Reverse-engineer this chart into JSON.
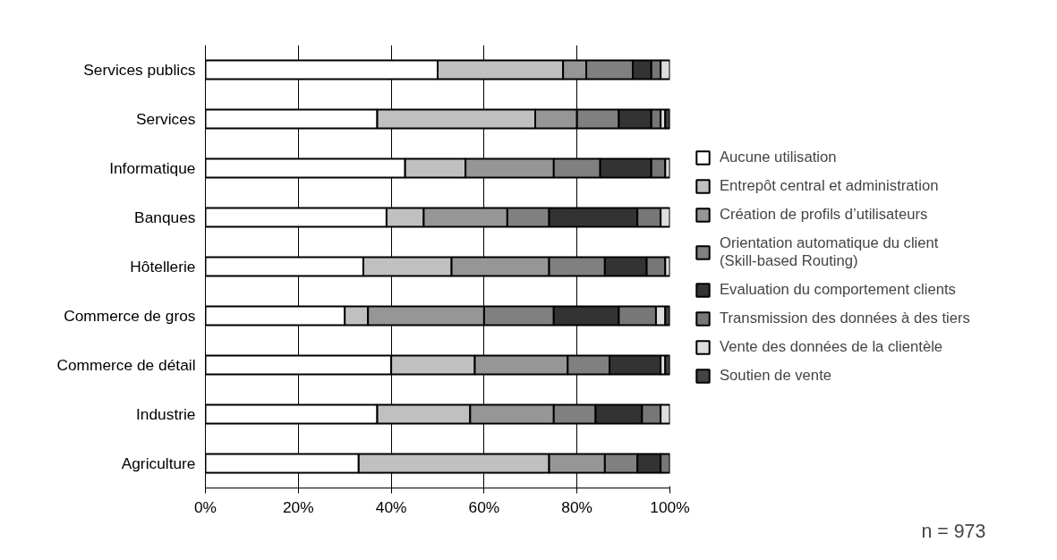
{
  "chart_data": {
    "type": "bar",
    "orientation": "horizontal",
    "stacked": true,
    "categories": [
      "Services publics",
      "Services",
      "Informatique",
      "Banques",
      "Hôtellerie",
      "Commerce de gros",
      "Commerce de détail",
      "Industrie",
      "Agriculture"
    ],
    "series": [
      {
        "name": "Aucune utilisation",
        "color": "#ffffff",
        "values": [
          50,
          37,
          43,
          39,
          34,
          30,
          40,
          37,
          33
        ]
      },
      {
        "name": "Entrepôt central et administration",
        "color": "#c0c0c0",
        "values": [
          27,
          34,
          13,
          8,
          19,
          5,
          18,
          20,
          41
        ]
      },
      {
        "name": "Création de profils d’utilisateurs",
        "color": "#969696",
        "values": [
          5,
          9,
          19,
          18,
          21,
          25,
          20,
          18,
          12
        ]
      },
      {
        "name": "Orientation automatique du client\n(Skill-based Routing)",
        "color": "#808080",
        "values": [
          10,
          9,
          10,
          9,
          12,
          15,
          9,
          9,
          7
        ]
      },
      {
        "name": "Evaluation du comportement clients",
        "color": "#333333",
        "values": [
          4,
          7,
          11,
          19,
          9,
          14,
          11,
          10,
          5
        ]
      },
      {
        "name": "Transmission des données à des tiers",
        "color": "#777777",
        "values": [
          2,
          2,
          3,
          5,
          4,
          8,
          null,
          4,
          2
        ]
      },
      {
        "name": "Vente des données de la clientèle",
        "color": "#dddddd",
        "values": [
          2,
          1,
          1,
          2,
          1,
          2,
          1,
          2,
          null
        ]
      },
      {
        "name": "Soutien de vente",
        "color": "#444444",
        "values": [
          null,
          1,
          null,
          null,
          null,
          1,
          1,
          null,
          null
        ]
      }
    ],
    "xlim": [
      0,
      100
    ],
    "xticks": [
      {
        "value": 0,
        "label": "0%"
      },
      {
        "value": 20,
        "label": "20%"
      },
      {
        "value": 40,
        "label": "40%"
      },
      {
        "value": 60,
        "label": "60%"
      },
      {
        "value": 80,
        "label": "80%"
      },
      {
        "value": 100,
        "label": "100%"
      }
    ],
    "grid": "x",
    "legend": "right",
    "annotations": [
      "n = 973"
    ]
  }
}
